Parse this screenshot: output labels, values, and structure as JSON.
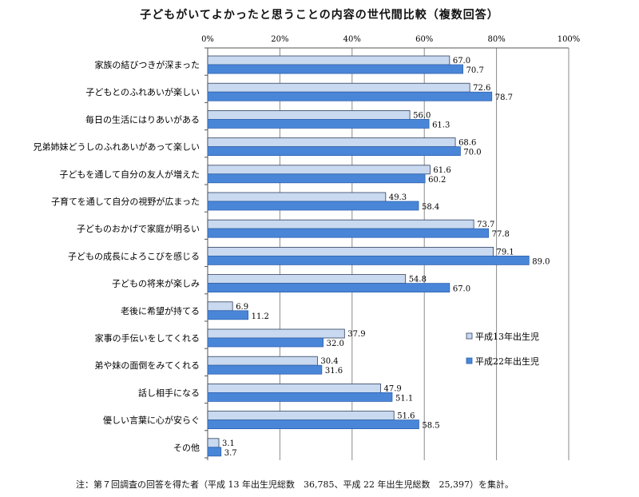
{
  "title": "子どもがいてよかったと思うことの内容の世代間比較（複数回答）",
  "note": "注：第７回調査の回答を得た者（平成 13 年出生児総数　36,785、平成 22 年出生児総数　25,397）を集計。",
  "colors": {
    "series1_fill": "#c9d9ef",
    "series1_stroke": "#2f3f5f",
    "series2_fill": "#4a86d8",
    "series2_stroke": "#2d62b0",
    "grid": "#8a8a8a"
  },
  "chart_data": {
    "type": "bar",
    "orientation": "horizontal",
    "xlim": [
      0,
      100
    ],
    "xticks": [
      "0%",
      "20%",
      "40%",
      "60%",
      "80%",
      "100%"
    ],
    "grid": true,
    "legend_position": "right",
    "categories": [
      "家族の結びつきが深まった",
      "子どもとのふれあいが楽しい",
      "毎日の生活にはりあいがある",
      "兄弟姉妹どうしのふれあいがあって楽しい",
      "子どもを通して自分の友人が増えた",
      "子育てを通して自分の視野が広まった",
      "子どものおかげで家庭が明るい",
      "子どもの成長によろこびを感じる",
      "子どもの将来が楽しみ",
      "老後に希望が持てる",
      "家事の手伝いをしてくれる",
      "弟や妹の面倒をみてくれる",
      "話し相手になる",
      "優しい言葉に心が安らぐ",
      "その他"
    ],
    "series": [
      {
        "name": "平成13年出生児",
        "values": [
          67.0,
          72.6,
          56.0,
          68.6,
          61.6,
          49.3,
          73.7,
          79.1,
          54.8,
          6.9,
          37.9,
          30.4,
          47.9,
          51.6,
          3.1
        ],
        "labels": [
          "67.0",
          "72.6",
          "56.0",
          "68.6",
          "61.6",
          "49.3",
          "73.7",
          "79.1",
          "54.8",
          "6.9",
          "37.9",
          "30.4",
          "47.9",
          "51.6",
          "3.1"
        ]
      },
      {
        "name": "平成22年出生児",
        "values": [
          70.7,
          78.7,
          61.3,
          70.0,
          60.2,
          58.4,
          77.8,
          89.0,
          67.0,
          11.2,
          32.0,
          31.6,
          51.1,
          58.5,
          3.7
        ],
        "labels": [
          "70.7",
          "78.7",
          "61.3",
          "70.0",
          "60.2",
          "58.4",
          "77.8",
          "89.0",
          "67.0",
          "11.2",
          "32.0",
          "31.6",
          "51.1",
          "58.5",
          "3.7"
        ]
      }
    ]
  }
}
